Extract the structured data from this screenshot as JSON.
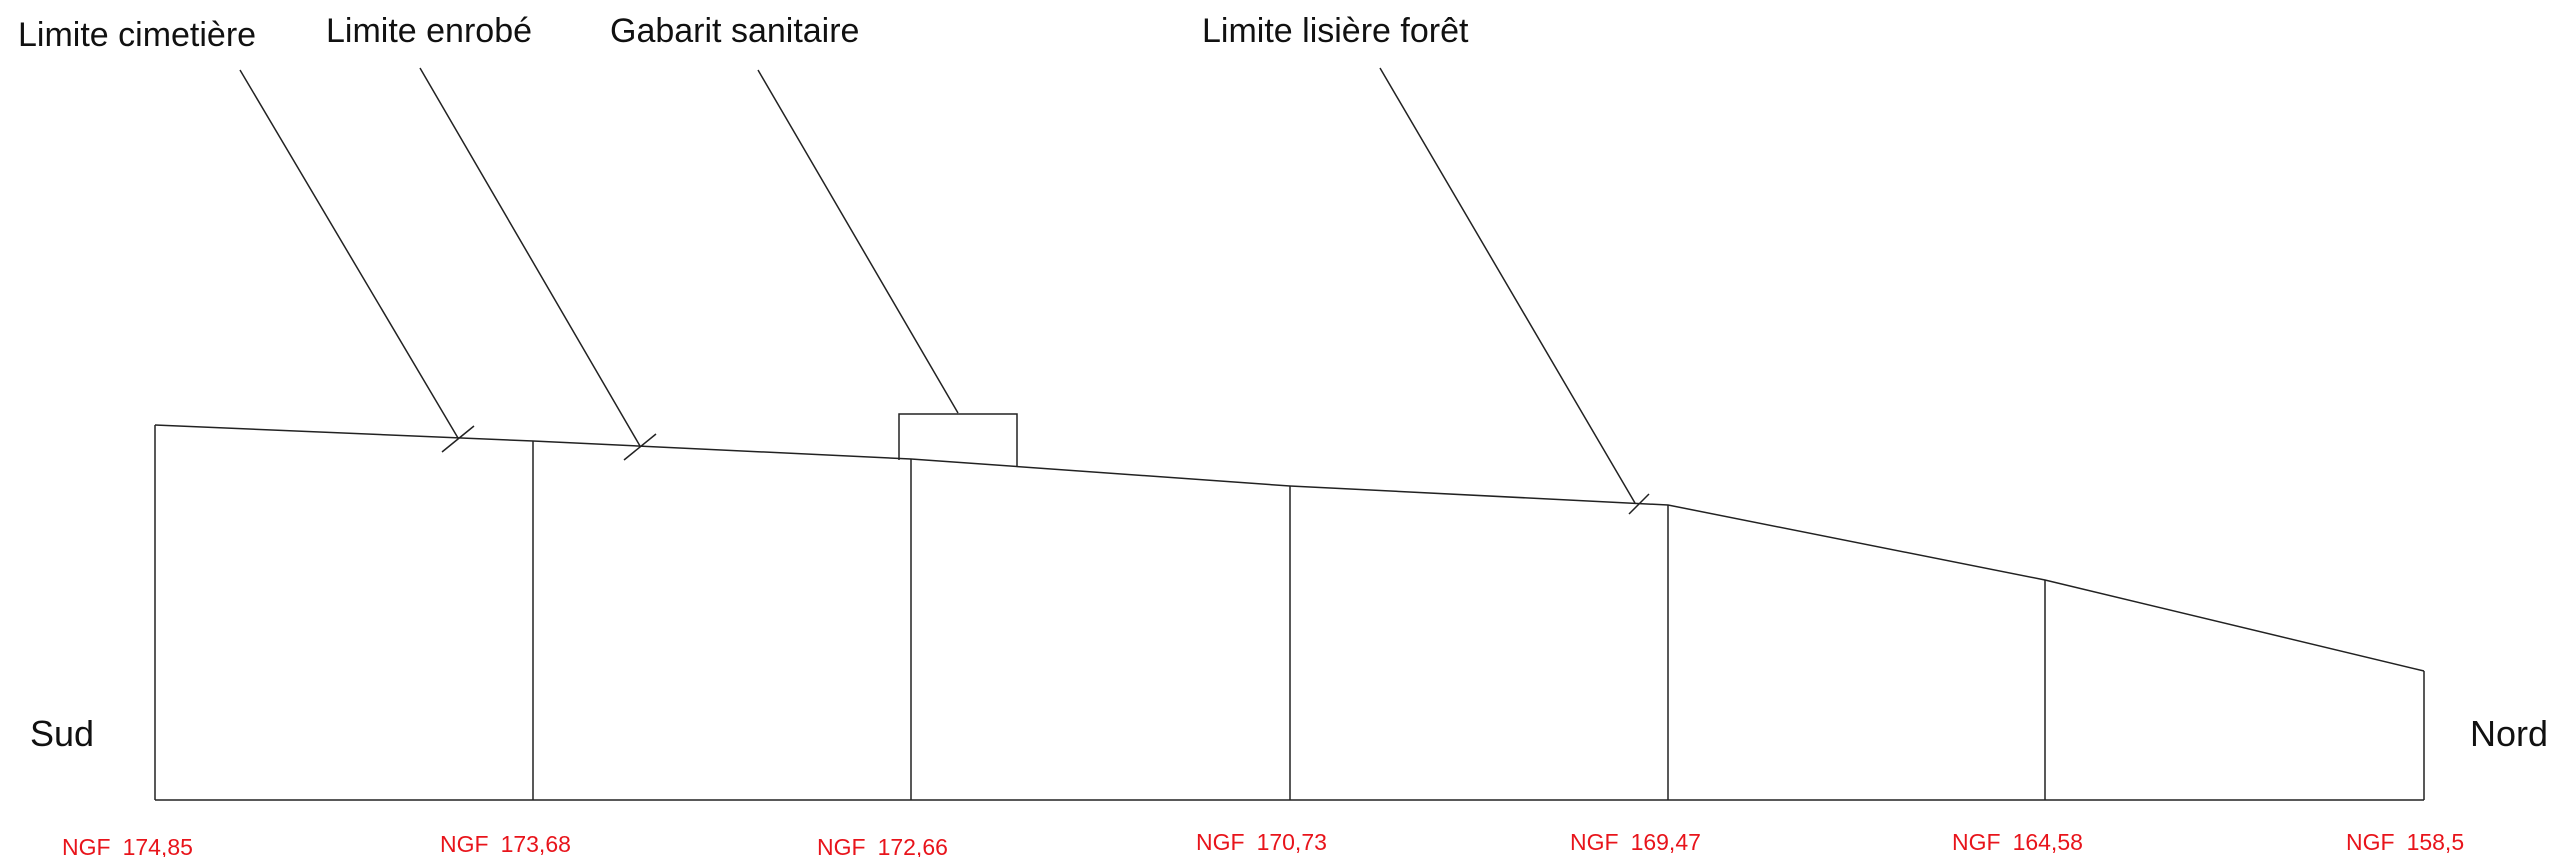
{
  "labels": {
    "cemetery": "Limite cimetière",
    "asphalt": "Limite enrobé",
    "sanitary": "Gabarit sanitaire",
    "forest": "Limite lisière forêt"
  },
  "directions": {
    "south": "Sud",
    "north": "Nord"
  },
  "elevations": [
    {
      "prefix": "NGF",
      "value": "174,85"
    },
    {
      "prefix": "NGF",
      "value": "173,68"
    },
    {
      "prefix": "NGF",
      "value": "172,66"
    },
    {
      "prefix": "NGF",
      "value": "170,73"
    },
    {
      "prefix": "NGF",
      "value": "169,47"
    },
    {
      "prefix": "NGF",
      "value": "164,58"
    },
    {
      "prefix": "NGF",
      "value": "158,5"
    }
  ],
  "colors": {
    "line": "#222222",
    "elevation_text": "#e8141b",
    "label_text": "#111111"
  }
}
